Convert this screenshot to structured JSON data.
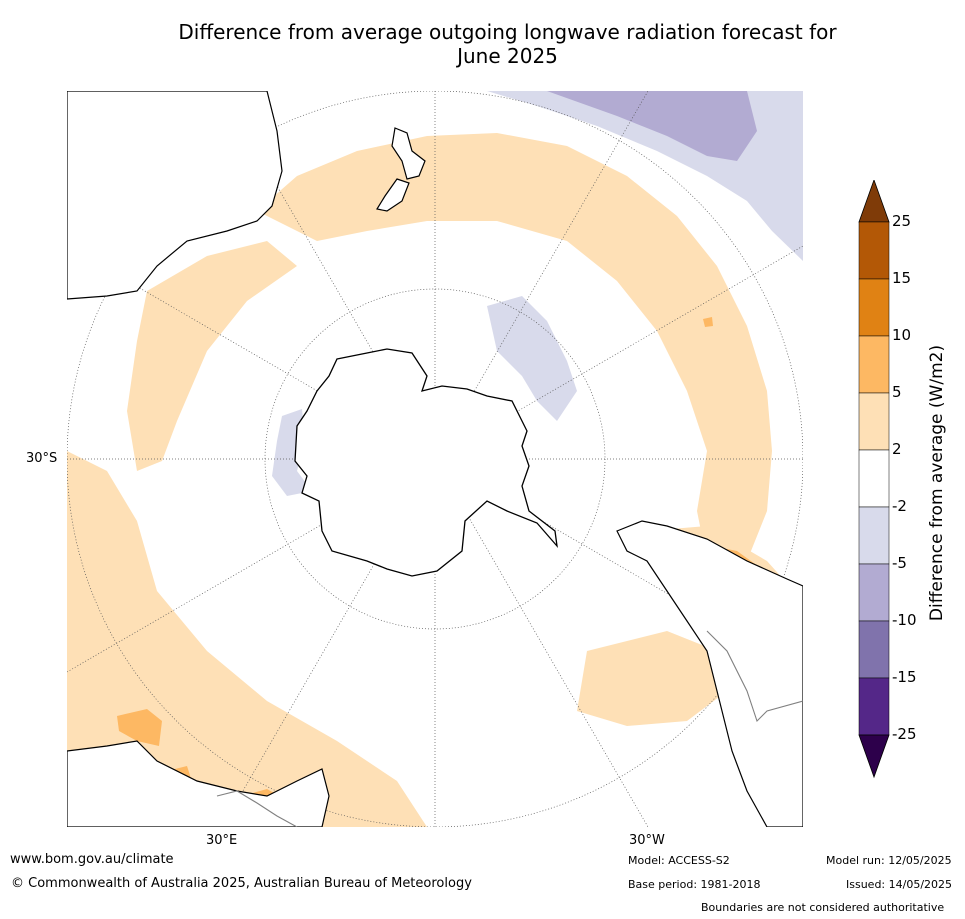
{
  "title_line1": "Difference from average outgoing longwave radiation forecast for",
  "title_line2": "June 2025",
  "map": {
    "projection": "south polar stereographic",
    "lat_label": "30°S",
    "lon_labels": [
      "30°E",
      "30°W"
    ],
    "land_color": "#ffffff",
    "coast_color": "#000000"
  },
  "colorbar": {
    "title": "Difference from average (W/m2)",
    "ticks": [
      "25",
      "15",
      "10",
      "5",
      "2",
      "-2",
      "-5",
      "-10",
      "-15",
      "-25"
    ],
    "bins": [
      {
        "range": ">25",
        "color": "#7f3b08"
      },
      {
        "range": "15 to 25",
        "color": "#b35806"
      },
      {
        "range": "10 to 15",
        "color": "#e08214"
      },
      {
        "range": "5 to 10",
        "color": "#fdb863"
      },
      {
        "range": "2 to 5",
        "color": "#fee0b6"
      },
      {
        "range": "-2 to 2",
        "color": "#ffffff"
      },
      {
        "range": "-5 to -2",
        "color": "#d8daeb"
      },
      {
        "range": "-10 to -5",
        "color": "#b2abd2"
      },
      {
        "range": "-15 to -10",
        "color": "#8073ac"
      },
      {
        "range": "-25 to -15",
        "color": "#542788"
      },
      {
        "range": "<-25",
        "color": "#2d004b"
      }
    ]
  },
  "footer": {
    "website": "www.bom.gov.au/climate",
    "copyright": "© Commonwealth of Australia 2025, Australian Bureau of Meteorology",
    "model": "Model: ACCESS-S2",
    "base_period": "Base period: 1981-2018",
    "model_run": "Model run: 12/05/2025",
    "issued": "Issued: 14/05/2025",
    "disclaimer": "Boundaries are not considered authoritative"
  }
}
